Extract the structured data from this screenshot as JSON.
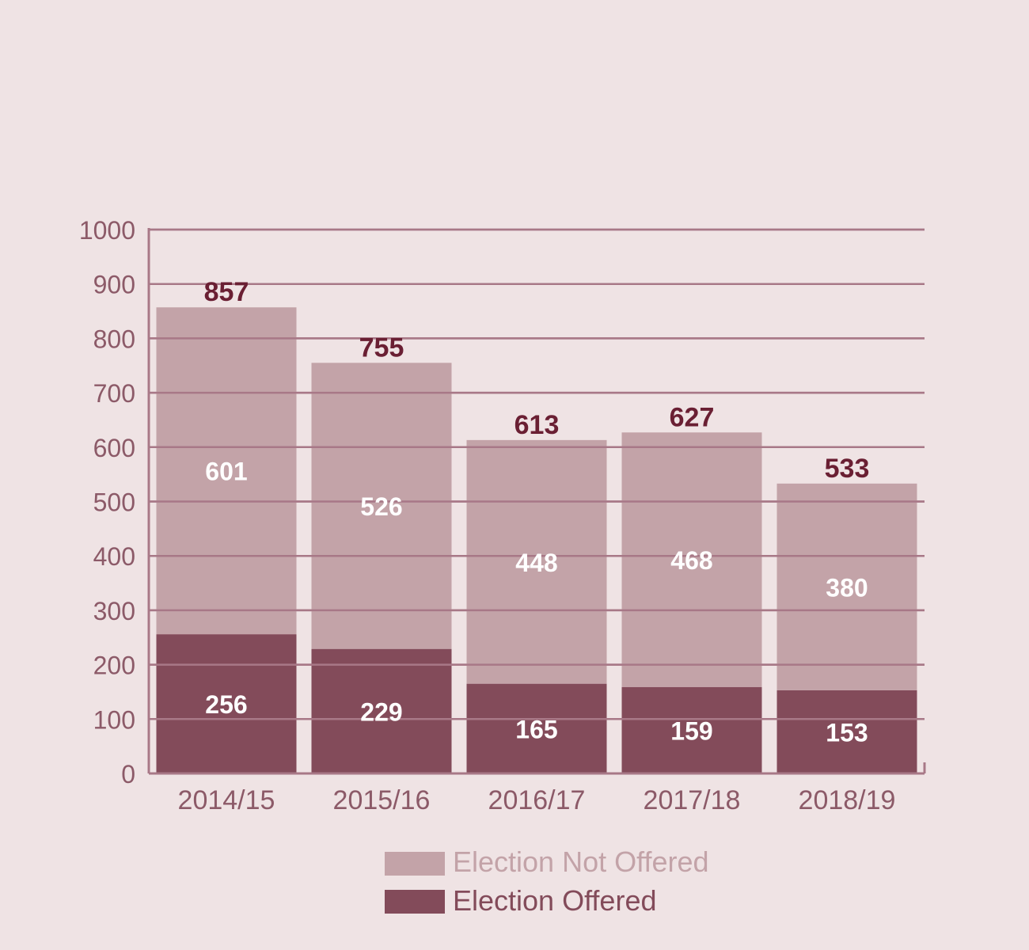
{
  "colors": {
    "background": "#efe3e4",
    "not_offered": "#c3a3a8",
    "offered": "#834b5a",
    "grid": "#a87887",
    "axis_text": "#8c5a68",
    "total_text": "#6a1f33"
  },
  "chart_data": {
    "type": "bar",
    "stacked": true,
    "title": "",
    "xlabel": "",
    "ylabel": "",
    "ylim": [
      0,
      1000
    ],
    "yticks": [
      0,
      100,
      200,
      300,
      400,
      500,
      600,
      700,
      800,
      900,
      1000
    ],
    "grid": true,
    "legend_position": "bottom-center",
    "categories": [
      "2014/15",
      "2015/16",
      "2016/17",
      "2017/18",
      "2018/19"
    ],
    "series": [
      {
        "name": "Election Offered",
        "values": [
          256,
          229,
          165,
          159,
          153
        ]
      },
      {
        "name": "Election Not Offered",
        "values": [
          601,
          526,
          448,
          468,
          380
        ]
      }
    ],
    "totals": [
      857,
      755,
      613,
      627,
      533
    ]
  },
  "legend": {
    "items": [
      {
        "label": "Election Not Offered"
      },
      {
        "label": "Election Offered"
      }
    ]
  }
}
